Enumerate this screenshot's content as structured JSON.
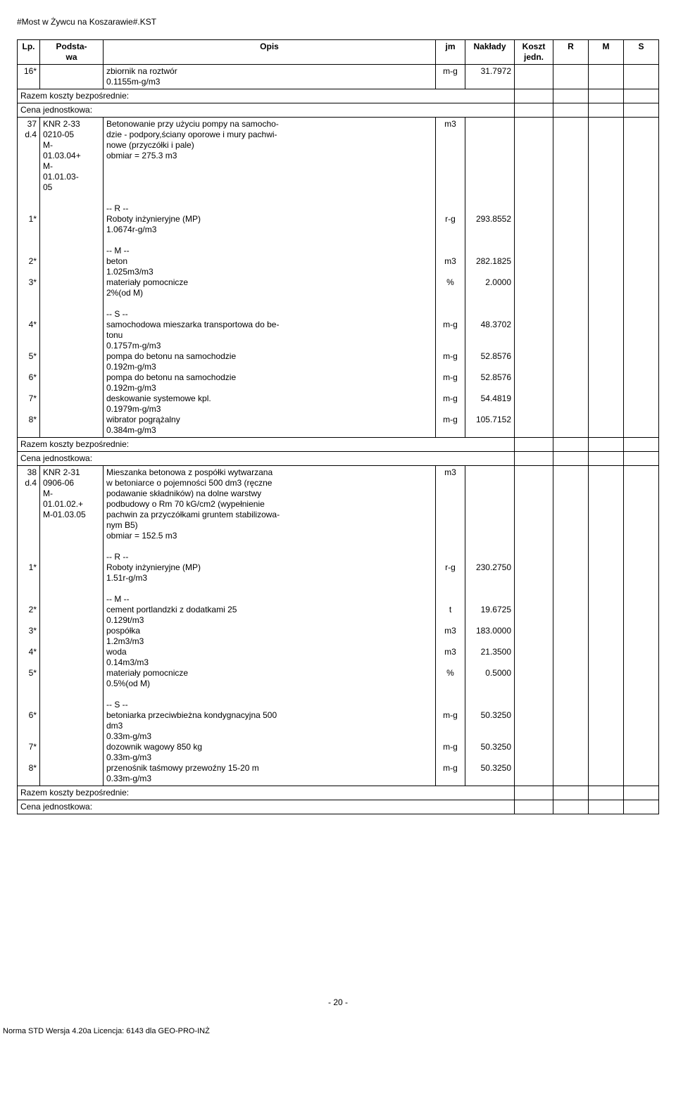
{
  "header": "#Most w Żywcu na Koszarawie#.KST",
  "columns": {
    "lp": "Lp.",
    "podstawa": "Podsta-\nwa",
    "opis": "Opis",
    "jm": "jm",
    "naklady": "Nakłady",
    "koszt": "Koszt\njedn.",
    "r": "R",
    "m": "M",
    "s": "S"
  },
  "labels": {
    "razem": "Razem koszty bezpośrednie:",
    "cena": "Cena jednostkowa:"
  },
  "rows": [
    {
      "lp": "16*",
      "pod": "",
      "opis": "zbiornik na roztwór\n0.1155m-g/m3",
      "jm": "m-g",
      "nak": "31.7972"
    },
    {
      "section": true
    },
    {
      "lp": "37\nd.4",
      "pod": "KNR 2-33\n0210-05\nM-\n01.03.04+\nM-\n01.01.03-\n05",
      "opis": "Betonowanie przy użyciu pompy na samocho-\ndzie - podpory,ściany oporowe i mury pachwi-\nnowe (przyczółki i pale)\nobmiar  =  275.3 m3",
      "jm": "m3",
      "nak": ""
    },
    {
      "spacer": true
    },
    {
      "lp": "",
      "pod": "",
      "opis": "-- R --",
      "jm": "",
      "nak": ""
    },
    {
      "lp": "1*",
      "pod": "",
      "opis": "Roboty inżynieryjne (MP)\n1.0674r-g/m3",
      "jm": "r-g",
      "nak": "293.8552"
    },
    {
      "spacer": true
    },
    {
      "lp": "",
      "pod": "",
      "opis": "-- M --",
      "jm": "",
      "nak": ""
    },
    {
      "lp": "2*",
      "pod": "",
      "opis": "beton\n1.025m3/m3",
      "jm": "m3",
      "nak": "282.1825"
    },
    {
      "lp": "3*",
      "pod": "",
      "opis": "materiały pomocnicze\n2%(od M)",
      "jm": "%",
      "nak": "2.0000"
    },
    {
      "spacer": true
    },
    {
      "lp": "",
      "pod": "",
      "opis": "-- S --",
      "jm": "",
      "nak": ""
    },
    {
      "lp": "4*",
      "pod": "",
      "opis": "samochodowa mieszarka transportowa do be-\ntonu\n0.1757m-g/m3",
      "jm": "m-g",
      "nak": "48.3702"
    },
    {
      "lp": "5*",
      "pod": "",
      "opis": "pompa do betonu na samochodzie\n0.192m-g/m3",
      "jm": "m-g",
      "nak": "52.8576"
    },
    {
      "lp": "6*",
      "pod": "",
      "opis": "pompa do betonu na samochodzie\n0.192m-g/m3",
      "jm": "m-g",
      "nak": "52.8576"
    },
    {
      "lp": "7*",
      "pod": "",
      "opis": "deskowanie systemowe kpl.\n0.1979m-g/m3",
      "jm": "m-g",
      "nak": "54.4819"
    },
    {
      "lp": "8*",
      "pod": "",
      "opis": "wibrator pogrążalny\n0.384m-g/m3",
      "jm": "m-g",
      "nak": "105.7152"
    },
    {
      "section": true
    },
    {
      "lp": "38\nd.4",
      "pod": "KNR 2-31\n0906-06\nM-\n01.01.02.+\nM-01.03.05",
      "opis": "Mieszanka betonowa z pospółki wytwarzana\nw betoniarce o pojemności 500 dm3 (ręczne\npodawanie składników) na dolne warstwy\npodbudowy o Rm 70 kG/cm2 (wypełnienie\npachwin za przyczółkami gruntem stabilizowa-\nnym B5)\nobmiar  =  152.5 m3",
      "jm": "m3",
      "nak": ""
    },
    {
      "spacer": true
    },
    {
      "lp": "",
      "pod": "",
      "opis": "-- R --",
      "jm": "",
      "nak": ""
    },
    {
      "lp": "1*",
      "pod": "",
      "opis": "Roboty inżynieryjne (MP)\n1.51r-g/m3",
      "jm": "r-g",
      "nak": "230.2750"
    },
    {
      "spacer": true
    },
    {
      "lp": "",
      "pod": "",
      "opis": "-- M --",
      "jm": "",
      "nak": ""
    },
    {
      "lp": "2*",
      "pod": "",
      "opis": "cement portlandzki z dodatkami 25\n0.129t/m3",
      "jm": "t",
      "nak": "19.6725"
    },
    {
      "lp": "3*",
      "pod": "",
      "opis": "pospółka\n1.2m3/m3",
      "jm": "m3",
      "nak": "183.0000"
    },
    {
      "lp": "4*",
      "pod": "",
      "opis": "woda\n0.14m3/m3",
      "jm": "m3",
      "nak": "21.3500"
    },
    {
      "lp": "5*",
      "pod": "",
      "opis": "materiały pomocnicze\n0.5%(od M)",
      "jm": "%",
      "nak": "0.5000"
    },
    {
      "spacer": true
    },
    {
      "lp": "",
      "pod": "",
      "opis": "-- S --",
      "jm": "",
      "nak": ""
    },
    {
      "lp": "6*",
      "pod": "",
      "opis": "betoniarka przeciwbieżna kondygnacyjna 500\ndm3\n0.33m-g/m3",
      "jm": "m-g",
      "nak": "50.3250"
    },
    {
      "lp": "7*",
      "pod": "",
      "opis": "dozownik wagowy 850 kg\n0.33m-g/m3",
      "jm": "m-g",
      "nak": "50.3250"
    },
    {
      "lp": "8*",
      "pod": "",
      "opis": "przenośnik taśmowy przewoźny 15-20 m\n0.33m-g/m3",
      "jm": "m-g",
      "nak": "50.3250"
    },
    {
      "section": true
    }
  ],
  "footer": {
    "page": "- 20 -",
    "note": "Norma STD Wersja 4.20a Licencja: 6143 dla GEO-PRO-INŻ"
  }
}
